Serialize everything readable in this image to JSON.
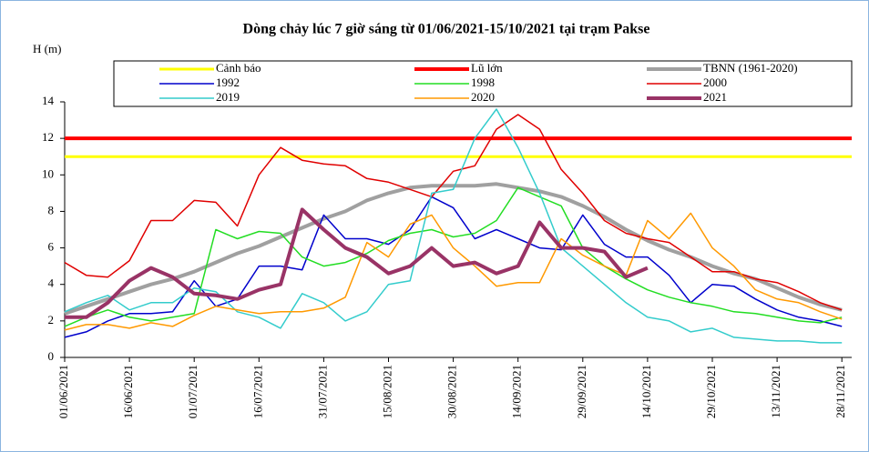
{
  "chart_data": {
    "type": "line",
    "title": "Dòng chảy lúc 7 giờ sáng từ 01/06/2021-15/10/2021 tại trạm Pakse",
    "y_label": "H (m)",
    "categories": [
      "01/06/2021",
      null,
      null,
      "16/06/2021",
      null,
      null,
      "01/07/2021",
      null,
      null,
      "16/07/2021",
      null,
      null,
      "31/07/2021",
      null,
      null,
      "15/08/2021",
      null,
      null,
      "30/08/2021",
      null,
      null,
      "14/09/2021",
      null,
      null,
      "29/09/2021",
      null,
      null,
      "14/10/2021",
      null,
      null,
      "29/10/2021",
      null,
      null,
      "13/11/2021",
      null,
      null,
      "28/11/2021"
    ],
    "ylim": [
      0,
      14
    ],
    "yticks": [
      0,
      2,
      4,
      6,
      8,
      10,
      12,
      14
    ],
    "lines": [
      {
        "name": "Cảnh báo",
        "color": "#ffff00",
        "value": 11
      },
      {
        "name": "Lũ lớn",
        "color": "#ff0000",
        "value": 12
      }
    ],
    "series": [
      {
        "name": "TBNN (1961-2020)",
        "color": "#a0a0a0",
        "values": [
          2.4,
          2.8,
          3.2,
          3.6,
          4.0,
          4.3,
          4.7,
          5.2,
          5.7,
          6.1,
          6.6,
          7.1,
          7.6,
          8.0,
          8.6,
          9.0,
          9.3,
          9.4,
          9.4,
          9.4,
          9.5,
          9.3,
          9.1,
          8.8,
          8.3,
          7.7,
          7.0,
          6.4,
          5.9,
          5.5,
          5.0,
          4.6,
          4.3,
          3.8,
          3.3,
          2.9,
          2.6
        ]
      },
      {
        "name": "1992",
        "color": "#0000cc",
        "values": [
          1.1,
          1.4,
          2.0,
          2.4,
          2.4,
          2.5,
          4.2,
          2.8,
          3.2,
          5.0,
          5.0,
          4.8,
          7.8,
          6.5,
          6.5,
          6.2,
          7.0,
          8.8,
          8.2,
          6.5,
          7.0,
          6.5,
          6.0,
          5.9,
          7.8,
          6.2,
          5.5,
          5.5,
          4.5,
          3.0,
          4.0,
          3.9,
          3.2,
          2.6,
          2.2,
          2.0,
          1.7
        ]
      },
      {
        "name": "1998",
        "color": "#22dd22",
        "values": [
          1.7,
          2.2,
          2.6,
          2.2,
          2.0,
          2.2,
          2.4,
          7.0,
          6.5,
          6.9,
          6.8,
          5.5,
          5.0,
          5.2,
          5.7,
          6.4,
          6.8,
          7.0,
          6.6,
          6.8,
          7.5,
          9.3,
          8.8,
          8.3,
          6.0,
          5.0,
          4.3,
          3.7,
          3.3,
          3.0,
          2.8,
          2.5,
          2.4,
          2.2,
          2.0,
          1.9,
          2.2
        ]
      },
      {
        "name": "2000",
        "color": "#e00000",
        "values": [
          5.2,
          4.5,
          4.4,
          5.3,
          7.5,
          7.5,
          8.6,
          8.5,
          7.2,
          10.0,
          11.5,
          10.8,
          10.6,
          10.5,
          9.8,
          9.6,
          9.2,
          8.8,
          10.2,
          10.5,
          12.5,
          13.3,
          12.5,
          10.3,
          9.0,
          7.5,
          6.8,
          6.5,
          6.3,
          5.5,
          4.7,
          4.7,
          4.3,
          4.1,
          3.6,
          3.0,
          2.6
        ]
      },
      {
        "name": "2019",
        "color": "#33cccc",
        "values": [
          2.5,
          3.0,
          3.4,
          2.6,
          3.0,
          3.0,
          3.8,
          3.6,
          2.5,
          2.2,
          1.6,
          3.5,
          3.0,
          2.0,
          2.5,
          4.0,
          4.2,
          9.0,
          9.2,
          12.0,
          13.6,
          11.5,
          9.0,
          6.0,
          5.0,
          4.0,
          3.0,
          2.2,
          2.0,
          1.4,
          1.6,
          1.1,
          1.0,
          0.9,
          0.9,
          0.8,
          0.8
        ]
      },
      {
        "name": "2020",
        "color": "#ff9900",
        "values": [
          1.5,
          1.8,
          1.8,
          1.6,
          1.9,
          1.7,
          2.3,
          2.8,
          2.6,
          2.4,
          2.5,
          2.5,
          2.7,
          3.3,
          6.3,
          5.5,
          7.3,
          7.8,
          6.0,
          5.0,
          3.9,
          4.1,
          4.1,
          6.5,
          5.6,
          5.0,
          4.5,
          7.5,
          6.5,
          7.9,
          6.0,
          5.0,
          3.7,
          3.2,
          3.0,
          2.5,
          2.1
        ]
      },
      {
        "name": "2021",
        "color": "#993366",
        "values": [
          2.2,
          2.2,
          3.0,
          4.2,
          4.9,
          4.4,
          3.5,
          3.4,
          3.2,
          3.7,
          4.0,
          8.1,
          7.0,
          6.0,
          5.5,
          4.6,
          5.0,
          6.0,
          5.0,
          5.2,
          4.6,
          5.0,
          7.4,
          6.0,
          6.0,
          5.8,
          4.4,
          4.9,
          null,
          null,
          null,
          null,
          null,
          null,
          null,
          null,
          null
        ]
      }
    ]
  }
}
